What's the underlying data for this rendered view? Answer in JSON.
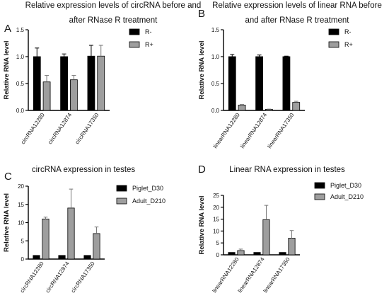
{
  "chart_data": [
    {
      "panel_letter": "A",
      "type": "bar",
      "title_lines": [
        "Relative expression levels of circRNA before and",
        "after RNase R treatment"
      ],
      "ylabel": "Relative RNA level",
      "ylim": [
        0,
        1.5
      ],
      "yticks": [
        "0.0",
        "0.5",
        "1.0",
        "1.5"
      ],
      "categories": [
        "circRNA12280",
        "circRNA12874",
        "circRNA17350"
      ],
      "legend_placement": "top-right",
      "series": [
        {
          "name": "R-",
          "color": "#000000",
          "values": [
            1.0,
            1.0,
            1.01
          ],
          "errors": [
            0.16,
            0.05,
            0.2
          ]
        },
        {
          "name": "R+",
          "color": "#9e9e9e",
          "values": [
            0.53,
            0.57,
            1.01
          ],
          "errors": [
            0.12,
            0.08,
            0.2
          ]
        }
      ]
    },
    {
      "panel_letter": "B",
      "type": "bar",
      "title_lines": [
        "Relative expression levels of linear RNA before",
        "and after RNase R treatment"
      ],
      "ylabel": "Relative RNA level",
      "ylim": [
        0,
        1.5
      ],
      "yticks": [
        "0.0",
        "0.5",
        "1.0",
        "1.5"
      ],
      "categories": [
        "linearRNA12280",
        "linearRNA12874",
        "linearRNA17350"
      ],
      "legend_placement": "top-right",
      "series": [
        {
          "name": "R-",
          "color": "#000000",
          "values": [
            1.0,
            1.0,
            1.0
          ],
          "errors": [
            0.04,
            0.03,
            0.01
          ]
        },
        {
          "name": "R+",
          "color": "#9e9e9e",
          "values": [
            0.1,
            0.02,
            0.15
          ],
          "errors": [
            0.01,
            0.005,
            0.02
          ]
        }
      ]
    },
    {
      "panel_letter": "C",
      "type": "bar",
      "title_lines": [
        "circRNA expression in testes"
      ],
      "ylabel": "Relative RNA level",
      "ylim": [
        0,
        20
      ],
      "yticks": [
        "0",
        "5",
        "10",
        "15",
        "20"
      ],
      "categories": [
        "circRNA12280",
        "circRNA12874",
        "circRNA17350"
      ],
      "legend_placement": "top-right",
      "series": [
        {
          "name": "Piglet_D30",
          "color": "#000000",
          "values": [
            1.0,
            1.0,
            1.0
          ],
          "errors": [
            0,
            0,
            0
          ]
        },
        {
          "name": "Adult_D210",
          "color": "#9e9e9e",
          "values": [
            11.0,
            14.0,
            7.0
          ],
          "errors": [
            0.5,
            5.2,
            1.8
          ]
        }
      ]
    },
    {
      "panel_letter": "D",
      "type": "bar",
      "title_lines": [
        "Linear RNA expression in testes"
      ],
      "ylabel": "Relative RNA level",
      "ylim": [
        0,
        25
      ],
      "yticks": [
        "0",
        "5",
        "10",
        "15",
        "20",
        "25"
      ],
      "categories": [
        "linearRNA12280",
        "linearRNA12874",
        "linearRNA17350"
      ],
      "legend_placement": "top-right",
      "series": [
        {
          "name": "Piglet_D30",
          "color": "#000000",
          "values": [
            1.0,
            1.0,
            1.0
          ],
          "errors": [
            0,
            0,
            0
          ]
        },
        {
          "name": "Adult_D210",
          "color": "#9e9e9e",
          "values": [
            1.8,
            14.8,
            7.0
          ],
          "errors": [
            0.6,
            6.0,
            3.2
          ]
        }
      ]
    }
  ]
}
